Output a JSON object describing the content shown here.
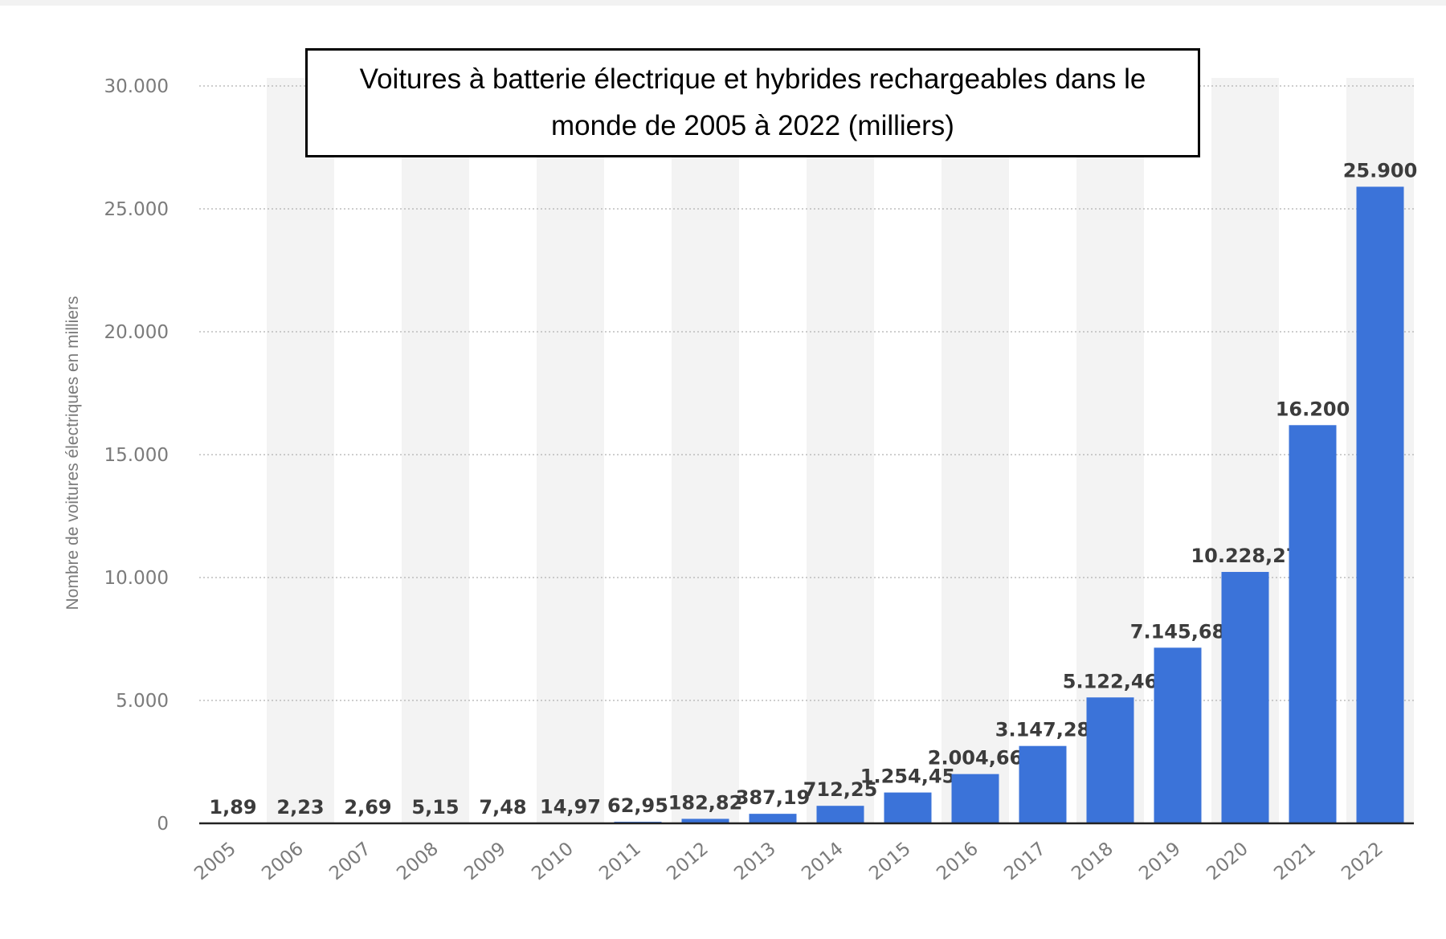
{
  "chart_data": {
    "type": "bar",
    "title": "Voitures à batterie électrique et hybrides rechargeables dans le monde de 2005 à 2022 (milliers)",
    "xlabel": "",
    "ylabel": "Nombre de voitures électriques en milliers",
    "ylim": [
      0,
      30000
    ],
    "yticks": [
      0,
      5000,
      10000,
      15000,
      20000,
      25000,
      30000
    ],
    "ytick_labels": [
      "0",
      "5.000",
      "10.000",
      "15.000",
      "20.000",
      "25.000",
      "30.000"
    ],
    "grid": true,
    "legend": "none",
    "categories": [
      "2005",
      "2006",
      "2007",
      "2008",
      "2009",
      "2010",
      "2011",
      "2012",
      "2013",
      "2014",
      "2015",
      "2016",
      "2017",
      "2018",
      "2019",
      "2020",
      "2021",
      "2022"
    ],
    "values": [
      1.89,
      2.23,
      2.69,
      5.15,
      7.48,
      14.97,
      62.95,
      182.82,
      387.19,
      712.25,
      1254.45,
      2004.66,
      3147.28,
      5122.46,
      7145.68,
      10228.27,
      16200,
      25900
    ],
    "value_labels": [
      "1,89",
      "2,23",
      "2,69",
      "5,15",
      "7,48",
      "14,97",
      "62,95",
      "182,82",
      "387,19",
      "712,25",
      "1.254,45",
      "2.004,66",
      "3.147,28",
      "5.122,46",
      "7.145,68",
      "10.228,27",
      "16.200",
      "25.900"
    ],
    "colors": {
      "bar": "#3b73d9",
      "column_band": "#f3f3f3",
      "grid": "#bdbdbd",
      "axis": "#222222",
      "tick_text": "#7b7b7b",
      "value_text": "#3c3c3c"
    }
  }
}
